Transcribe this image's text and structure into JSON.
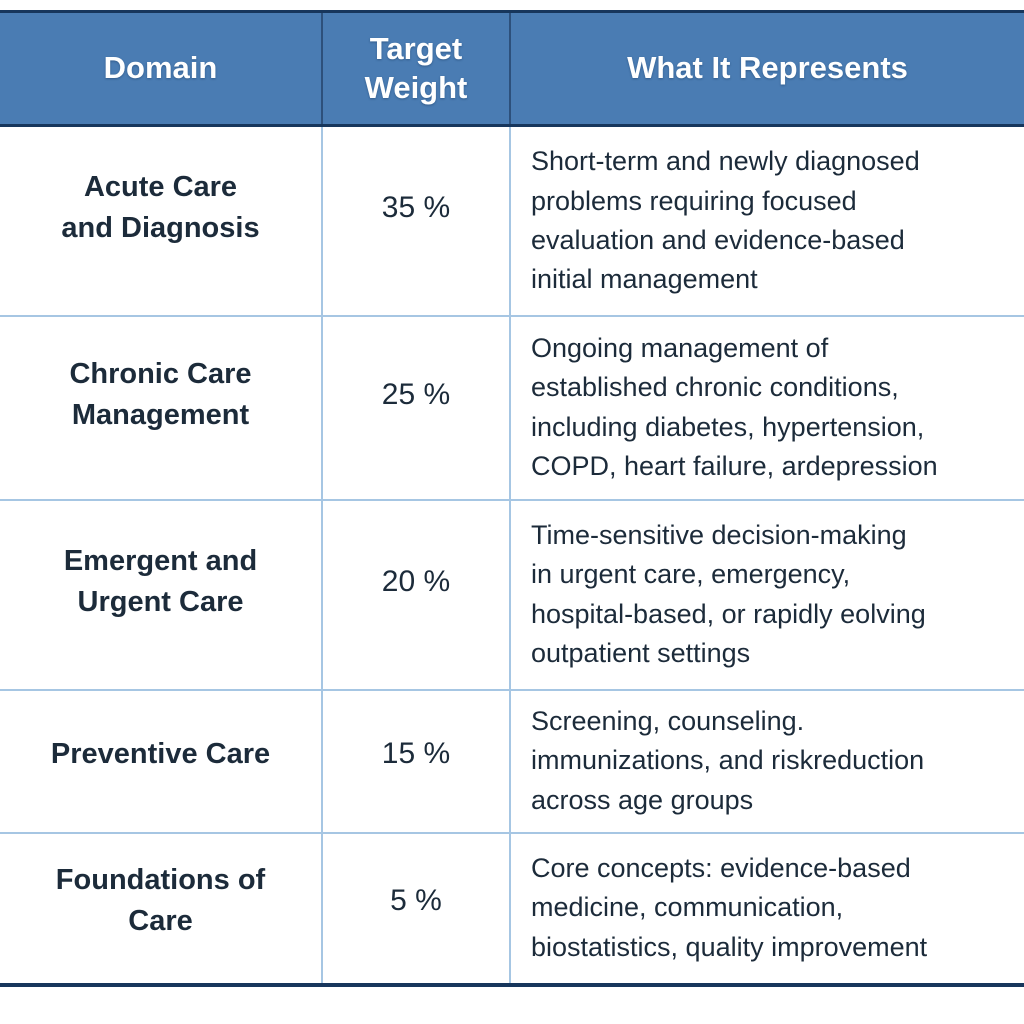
{
  "header": {
    "columns": [
      {
        "label": "Domain"
      },
      {
        "label": "Target\nWeight"
      },
      {
        "label": "What It Represents"
      }
    ]
  },
  "rows": [
    {
      "domain": "Acute Care\nand Diagnosis",
      "weight": "35 %",
      "represents": "Short-term and newly diagnosed\nproblems requiring focused\nevaluation and evidence-based\ninitial management"
    },
    {
      "domain": "Chronic Care\nManagement",
      "weight": "25 %",
      "represents": "Ongoing management of\nestablished chronic conditions,\nincluding diabetes, hypertension,\nCOPD, heart failure, ardepression"
    },
    {
      "domain": "Emergent and\nUrgent Care",
      "weight": "20 %",
      "represents": "Time-sensitive decision-making\nin urgent care, emergency,\nhospital-based, or rapidly eolving\noutpatient settings"
    },
    {
      "domain": "Preventive Care",
      "weight": "15 %",
      "represents": "Screening, counseling.\nimmunizations, and riskreduction\nacross age groups"
    },
    {
      "domain": "Foundations of\nCare",
      "weight": "5 %",
      "represents": "Core concepts: evidence-based\nmedicine, communication,\nbiostatistics, quality improvement"
    }
  ],
  "colors": {
    "header_bg": "#4a7cb3",
    "header_text": "#ffffff",
    "border_dark": "#17365c",
    "border_light": "#a6c6e3",
    "body_text": "#1c2b3a",
    "body_bg": "#ffffff"
  },
  "chart_data": {
    "type": "table",
    "title": "",
    "columns": [
      "Domain",
      "Target Weight",
      "What It Represents"
    ],
    "rows": [
      [
        "Acute Care and Diagnosis",
        "35 %",
        "Short-term and newly diagnosed problems requiring focused evaluation and evidence-based initial management"
      ],
      [
        "Chronic Care Management",
        "25 %",
        "Ongoing management of established chronic conditions, including diabetes, hypertension, COPD, heart failure, ardepression"
      ],
      [
        "Emergent and Urgent Care",
        "20 %",
        "Time-sensitive decision-making in urgent care, emergency, hospital-based, or rapidly eolving outpatient settings"
      ],
      [
        "Preventive Care",
        "15 %",
        "Screening, counseling. immunizations, and riskreduction across age groups"
      ],
      [
        "Foundations of Care",
        "5 %",
        "Core concepts: evidence-based medicine, communication, biostatistics, quality improvement"
      ]
    ],
    "weights_percent": [
      35,
      25,
      20,
      15,
      5
    ]
  }
}
